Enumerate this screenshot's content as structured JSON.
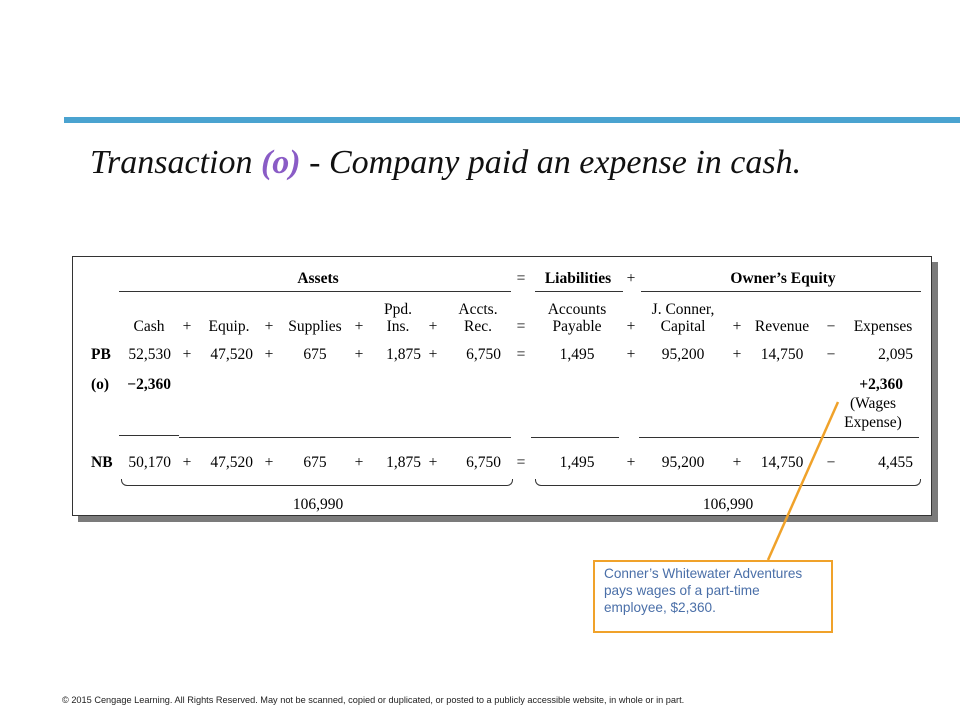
{
  "title": {
    "prefix": "Transaction ",
    "code": "(o)",
    "suffix": " - Company paid an expense in cash."
  },
  "equation": {
    "assets": "Assets",
    "equals": "=",
    "liabilities": "Liabilities",
    "plus": "+",
    "owners_equity": "Owner’s Equity"
  },
  "columns": {
    "cash": "Cash",
    "equip": "Equip.",
    "supplies": "Supplies",
    "ppd_1": "Ppd.",
    "ppd_2": "Ins.",
    "accts_1": "Accts.",
    "accts_2": "Rec.",
    "ap_1": "Accounts",
    "ap_2": "Payable",
    "cap_1": "J. Conner,",
    "cap_2": "Capital",
    "revenue": "Revenue",
    "expenses": "Expenses"
  },
  "ops": {
    "plus": "+",
    "minus": "−",
    "equals": "="
  },
  "pb": {
    "label": "PB",
    "cash": "52,530",
    "equip": "47,520",
    "supplies": "675",
    "ppd": "1,875",
    "accts": "6,750",
    "ap": "1,495",
    "capital": "95,200",
    "revenue": "14,750",
    "expenses": "2,095"
  },
  "o": {
    "label": "(o)",
    "cash": "−2,360",
    "expenses": "+2,360",
    "note_1": "(Wages",
    "note_2": "Expense)"
  },
  "nb": {
    "label": "NB",
    "cash": "50,170",
    "equip": "47,520",
    "supplies": "675",
    "ppd": "1,875",
    "accts": "6,750",
    "ap": "1,495",
    "capital": "95,200",
    "revenue": "14,750",
    "expenses": "4,455"
  },
  "totals": {
    "assets": "106,990",
    "liab_equity": "106,990"
  },
  "callout": {
    "text": "Conner’s Whitewater Adventures pays wages of a part-time employee, $2,360."
  },
  "footer": {
    "text": "© 2015 Cengage Learning. All Rights Reserved. May not be scanned, copied or duplicated, or posted to a publicly accessible website, in whole or in part."
  },
  "colors": {
    "accent_bar": "#4aa3d0",
    "code": "#8a5cc6",
    "callout_border": "#f0a22a",
    "callout_text": "#4a6fa8"
  }
}
